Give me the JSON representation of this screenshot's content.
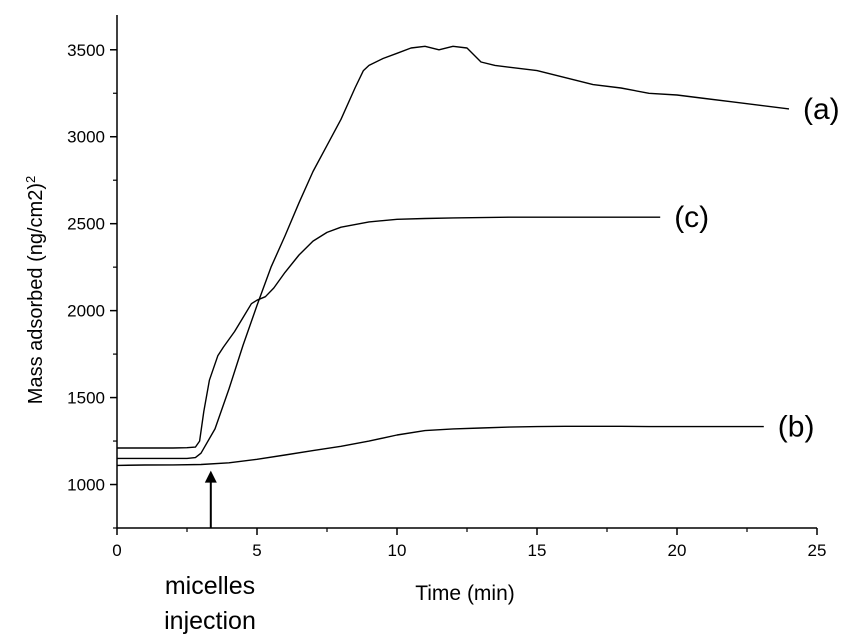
{
  "chart_data": {
    "type": "line",
    "xlabel": "Time (min)",
    "ylabel": "Mass adsorbed (ng/cm2)",
    "ylabel_unit_superscript": "2",
    "xlim": [
      0,
      25
    ],
    "ylim": [
      750,
      3700
    ],
    "x_ticks": [
      0,
      5,
      10,
      15,
      20,
      25
    ],
    "x_tick_labels": [
      "0",
      "5",
      "10",
      "15",
      "20",
      "25"
    ],
    "y_ticks": [
      1000,
      1500,
      2000,
      2500,
      3000,
      3500
    ],
    "y_tick_labels": [
      "1000",
      "1500",
      "2000",
      "2500",
      "3000",
      "3500"
    ],
    "grid": false,
    "line_color": "#000000",
    "annotation": {
      "text_line1": "micelles",
      "text_line2": "injection",
      "x": 3.35,
      "arrow_tip_y": 1080,
      "arrow_tail_y": 750
    },
    "series": [
      {
        "name": "(a)",
        "x": [
          0,
          1,
          2,
          2.5,
          2.8,
          3.0,
          3.5,
          4.0,
          4.5,
          5.0,
          5.5,
          6.0,
          6.5,
          7.0,
          7.5,
          8.0,
          8.5,
          8.8,
          9.0,
          9.5,
          10.0,
          10.5,
          11.0,
          11.5,
          12.0,
          12.5,
          13.0,
          13.5,
          14.0,
          15.0,
          16.0,
          17.0,
          18.0,
          19.0,
          20.0,
          21.0,
          22.0,
          23.0,
          24.0
        ],
        "y": [
          1150,
          1150,
          1150,
          1150,
          1155,
          1180,
          1320,
          1550,
          1800,
          2030,
          2250,
          2430,
          2620,
          2800,
          2950,
          3100,
          3280,
          3380,
          3410,
          3450,
          3480,
          3510,
          3520,
          3500,
          3520,
          3510,
          3430,
          3410,
          3400,
          3380,
          3340,
          3300,
          3280,
          3250,
          3240,
          3220,
          3200,
          3180,
          3160
        ]
      },
      {
        "name": "(b)",
        "x": [
          0,
          1,
          2,
          3,
          4,
          5,
          6,
          7,
          8,
          9,
          10,
          11,
          12,
          13,
          14,
          15,
          16,
          17,
          18,
          19,
          20,
          21,
          22,
          23.1
        ],
        "y": [
          1110,
          1112,
          1113,
          1115,
          1125,
          1145,
          1170,
          1195,
          1220,
          1250,
          1285,
          1310,
          1320,
          1325,
          1330,
          1333,
          1335,
          1335,
          1335,
          1333,
          1333,
          1333,
          1333,
          1333
        ]
      },
      {
        "name": "(c)",
        "x": [
          0,
          1,
          2,
          2.5,
          2.8,
          2.95,
          3.1,
          3.3,
          3.6,
          3.8,
          4.2,
          4.5,
          4.8,
          5.0,
          5.3,
          5.6,
          6.0,
          6.5,
          7.0,
          7.5,
          8.0,
          9.0,
          10.0,
          11.0,
          12.0,
          13.0,
          14.0,
          15.0,
          16.0,
          17.0,
          18.0,
          19.4
        ],
        "y": [
          1210,
          1210,
          1210,
          1212,
          1215,
          1250,
          1420,
          1600,
          1740,
          1790,
          1880,
          1960,
          2040,
          2060,
          2080,
          2130,
          2220,
          2320,
          2400,
          2450,
          2480,
          2510,
          2525,
          2530,
          2533,
          2535,
          2537,
          2537,
          2537,
          2537,
          2537,
          2537
        ]
      }
    ]
  }
}
